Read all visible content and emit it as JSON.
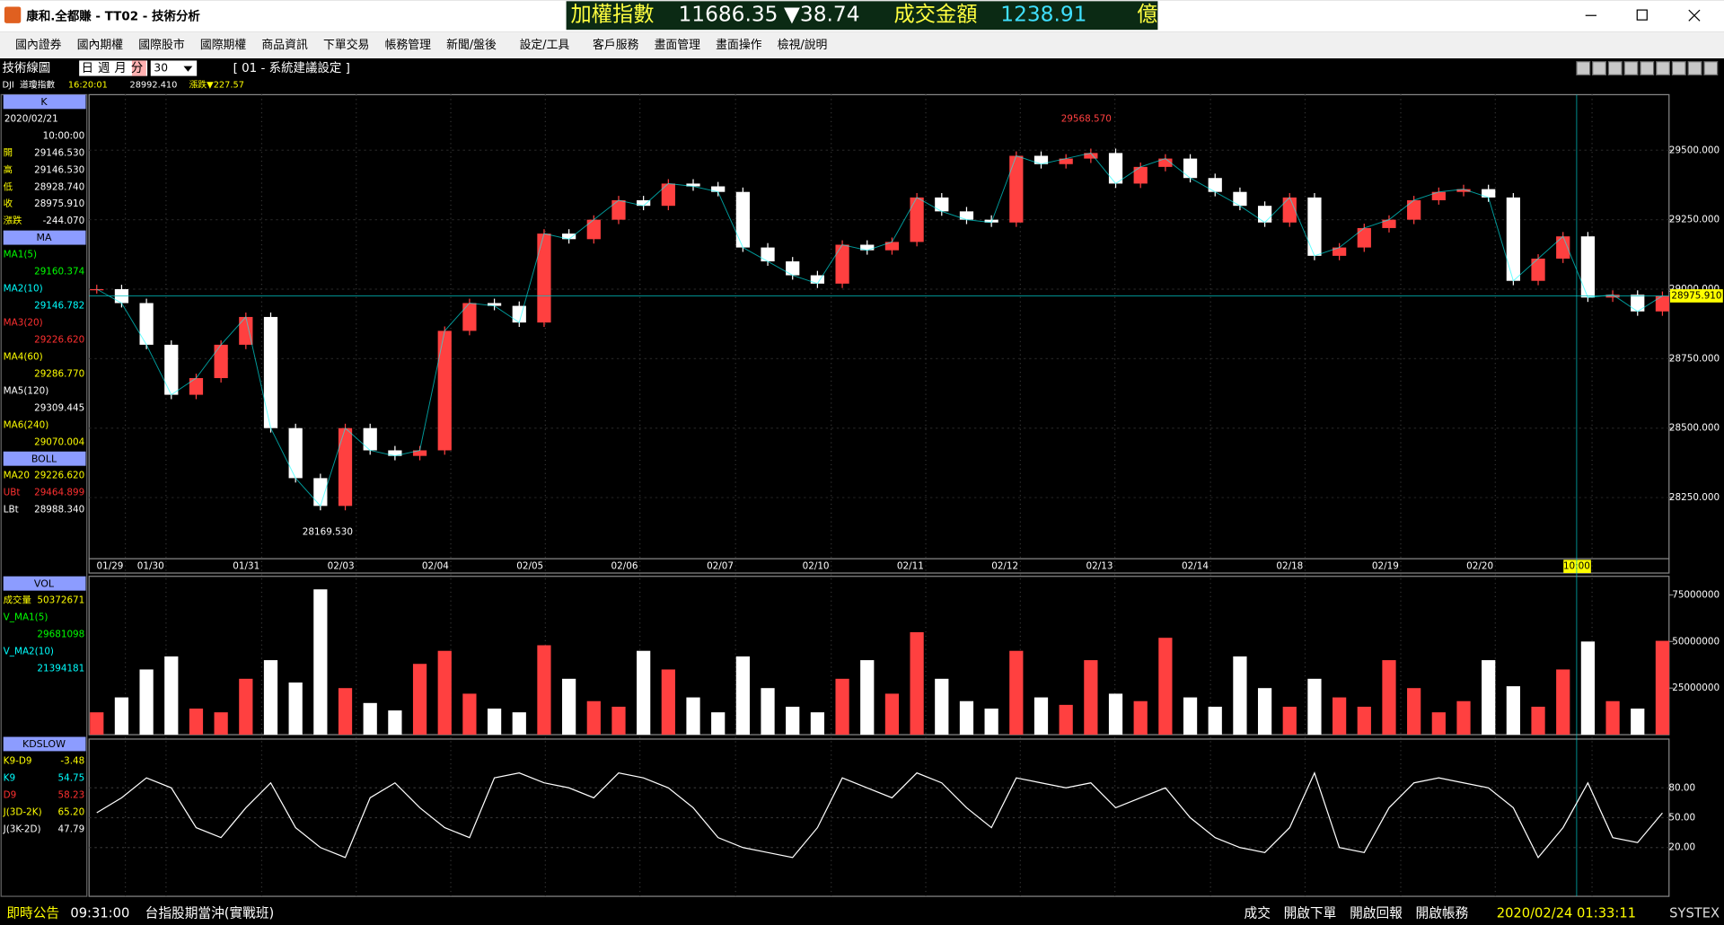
{
  "window": {
    "title": "康和.全都賺 - TT02 - 技術分析"
  },
  "ticker": {
    "index_name": "加權指數",
    "index_value": "11686.35",
    "index_change": "▼38.74",
    "turnover_label": "成交金額",
    "turnover_value": "1238.91",
    "turnover_unit": "億"
  },
  "menu": [
    "國內證券",
    "國內期權",
    "國際股市",
    "國際期權",
    "商品資訊",
    "下單交易",
    "帳務管理",
    "新聞/盤後",
    "設定/工具",
    "客戶服務",
    "畫面管理",
    "畫面操作",
    "檢視/說明"
  ],
  "toolbar": {
    "title": "技術線圖",
    "period_tabs": [
      "日",
      "週",
      "月",
      "分"
    ],
    "interval": "30",
    "setting": "[ 01 - 系統建議設定 ]"
  },
  "info": {
    "symbol": "DJI",
    "name": "道瓊指數",
    "time": "16:20:01",
    "price": "28992.410",
    "change": "漲跌▼227.57"
  },
  "left_panel": [
    {
      "title": "K",
      "date": "2020/02/21",
      "time": "10:00:00",
      "rows": [
        {
          "label": "開",
          "value": "29146.530",
          "color": "#ffff00"
        },
        {
          "label": "高",
          "value": "29146.530",
          "color": "#ffff00"
        },
        {
          "label": "低",
          "value": "28928.740",
          "color": "#ffff00"
        },
        {
          "label": "收",
          "value": "28975.910",
          "color": "#ffff00"
        },
        {
          "label": "漲跌",
          "value": "-244.070",
          "color": "#ffff00"
        }
      ]
    },
    {
      "title": "MA",
      "rows": [
        {
          "label": "MA1(5)",
          "value": "29160.374",
          "color": "#00ff00"
        },
        {
          "label": "MA2(10)",
          "value": "29146.782",
          "color": "#00ffff"
        },
        {
          "label": "MA3(20)",
          "value": "29226.620",
          "color": "#ff3030"
        },
        {
          "label": "MA4(60)",
          "value": "29286.770",
          "color": "#ffff00"
        },
        {
          "label": "MA5(120)",
          "value": "29309.445",
          "color": "#ffffff"
        },
        {
          "label": "MA6(240)",
          "value": "29070.004",
          "color": "#ffff00"
        }
      ]
    },
    {
      "title": "BOLL",
      "rows": [
        {
          "label": "MA20",
          "value": "29226.620",
          "color": "#ffff00"
        },
        {
          "label": "UBt",
          "value": "29464.899",
          "color": "#ff3030"
        },
        {
          "label": "LBt",
          "value": "28988.340",
          "color": "#ffffff"
        }
      ]
    },
    {
      "title": "VOL",
      "rows": [
        {
          "label": "成交量",
          "value": "50372671",
          "color": "#ffff00"
        },
        {
          "label": "V_MA1(5)",
          "value": "29681098",
          "color": "#00ff00"
        },
        {
          "label": "V_MA2(10)",
          "value": "21394181",
          "color": "#00ffff"
        }
      ]
    },
    {
      "title": "KDSLOW",
      "rows": [
        {
          "label": "K9-D9",
          "value": "-3.48",
          "color": "#ffff00"
        },
        {
          "label": "K9",
          "value": "54.75",
          "color": "#00ffff"
        },
        {
          "label": "D9",
          "value": "58.23",
          "color": "#ff3030"
        },
        {
          "label": "J(3D-2K)",
          "value": "65.20",
          "color": "#ffff00"
        },
        {
          "label": "J(3K-2D)",
          "value": "47.79",
          "color": "#ffffff"
        }
      ]
    }
  ],
  "price_chart": {
    "type": "candlestick",
    "dates": [
      "01/29",
      "01/30",
      "01/31",
      "02/03",
      "02/04",
      "02/05",
      "02/06",
      "02/07",
      "02/10",
      "02/11",
      "02/12",
      "02/13",
      "02/14",
      "02/18",
      "02/19",
      "02/20",
      "10:00"
    ],
    "closes": [
      29000,
      28950,
      28800,
      28620,
      28680,
      28800,
      28900,
      28500,
      28320,
      28220,
      28500,
      28420,
      28400,
      28420,
      28850,
      28950,
      28940,
      28880,
      29200,
      29180,
      29250,
      29320,
      29300,
      29380,
      29370,
      29350,
      29150,
      29100,
      29050,
      29020,
      29160,
      29140,
      29170,
      29330,
      29280,
      29250,
      29240,
      29480,
      29450,
      29470,
      29490,
      29380,
      29440,
      29470,
      29400,
      29350,
      29300,
      29240,
      29330,
      29120,
      29150,
      29220,
      29250,
      29320,
      29350,
      29360,
      29330,
      29030,
      29110,
      29190,
      28970,
      28980,
      28920,
      28975.91
    ],
    "ylim": [
      28030,
      29700
    ],
    "yticks": [
      {
        "value": 28250,
        "label": "28250.000"
      },
      {
        "value": 28500,
        "label": "28500.000"
      },
      {
        "value": 28750,
        "label": "28750.000"
      },
      {
        "value": 29000,
        "label": "29000.000"
      },
      {
        "value": 29250,
        "label": "29250.000"
      },
      {
        "value": 29500,
        "label": "29500.000"
      }
    ],
    "high_label": "29568.570",
    "low_label": "28169.530",
    "last_label": "28975.910",
    "up_color": "#ff4040",
    "down_color": "#ffffff"
  },
  "volume_chart": {
    "type": "bar",
    "values": [
      12000000,
      20000000,
      35000000,
      42000000,
      14000000,
      12000000,
      30000000,
      40000000,
      28000000,
      78000000,
      25000000,
      17000000,
      13000000,
      38000000,
      45000000,
      22000000,
      14000000,
      12000000,
      48000000,
      30000000,
      18000000,
      15000000,
      45000000,
      35000000,
      20000000,
      12000000,
      42000000,
      25000000,
      15000000,
      12000000,
      30000000,
      40000000,
      22000000,
      55000000,
      30000000,
      18000000,
      14000000,
      45000000,
      20000000,
      16000000,
      40000000,
      22000000,
      18000000,
      52000000,
      20000000,
      15000000,
      42000000,
      25000000,
      15000000,
      30000000,
      20000000,
      15000000,
      40000000,
      25000000,
      12000000,
      18000000,
      40000000,
      26000000,
      15000000,
      35000000,
      50000000,
      18000000,
      14000000,
      50372671
    ],
    "ylim": [
      0,
      85000000
    ],
    "yticks": [
      25000000,
      50000000,
      75000000
    ]
  },
  "kd_chart": {
    "type": "line",
    "series": [
      {
        "name": "K9",
        "color": "#ffffff",
        "values": [
          55,
          70,
          90,
          80,
          40,
          30,
          60,
          85,
          40,
          20,
          10,
          70,
          85,
          60,
          40,
          30,
          90,
          95,
          85,
          80,
          70,
          95,
          90,
          80,
          60,
          30,
          20,
          15,
          10,
          40,
          90,
          80,
          70,
          95,
          85,
          60,
          40,
          90,
          85,
          80,
          85,
          60,
          70,
          80,
          50,
          30,
          20,
          15,
          40,
          95,
          20,
          15,
          60,
          85,
          90,
          85,
          80,
          60,
          10,
          40,
          85,
          30,
          25,
          54.75
        ]
      }
    ],
    "ylim": [
      -29,
      129
    ],
    "yticks": [
      {
        "value": 20,
        "label": "20.00"
      },
      {
        "value": 50,
        "label": "50.00"
      },
      {
        "value": 80,
        "label": "80.00"
      }
    ]
  },
  "status_bar": {
    "left": [
      "即時公告",
      "09:31:00",
      "台指股期當沖(實戰班)"
    ],
    "right": [
      "成交",
      "開啟下單",
      "開啟回報",
      "開啟帳務",
      "2020/02/24 01:33:11"
    ],
    "brand": "SYSTEX"
  }
}
